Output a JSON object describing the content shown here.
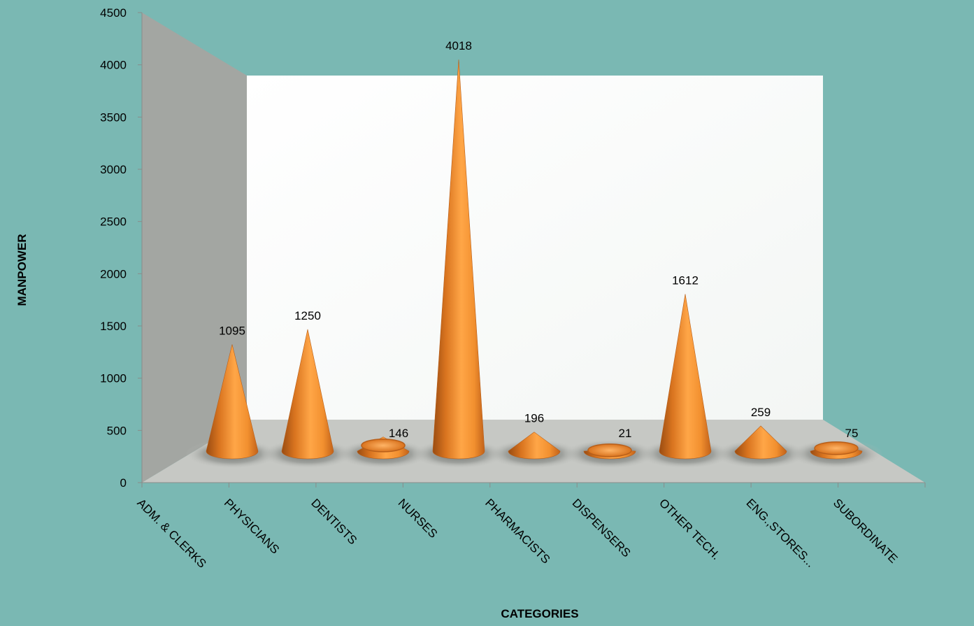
{
  "chart_data": {
    "type": "bar",
    "shape": "3d-cone",
    "categories": [
      "ADM. & CLERKS",
      "PHYSICIANS",
      "DENTISTS",
      "NURSES",
      "PHARMACISTS",
      "DISPENSERS",
      "OTHER TECH.",
      "ENG.,STORES...",
      "SUBORDINATE"
    ],
    "values": [
      1095,
      1250,
      146,
      4018,
      196,
      21,
      1612,
      259,
      75
    ],
    "data_labels": [
      "1095",
      "1250",
      "146",
      "4018",
      "196",
      "21",
      "1612",
      "259",
      "75"
    ],
    "xlabel": "CATEGORIES",
    "ylabel": "MANPOWER",
    "ylim": [
      0,
      4500
    ],
    "yticks": [
      0,
      500,
      1000,
      1500,
      2000,
      2500,
      3000,
      3500,
      4000,
      4500
    ],
    "grid": false,
    "legend": "none",
    "colors": {
      "background": "#7ab8b3",
      "back_wall": "#ffffff",
      "side_wall": "#a3a6a2",
      "floor": "#c6c8c4",
      "cone": "#f28a2a"
    }
  }
}
